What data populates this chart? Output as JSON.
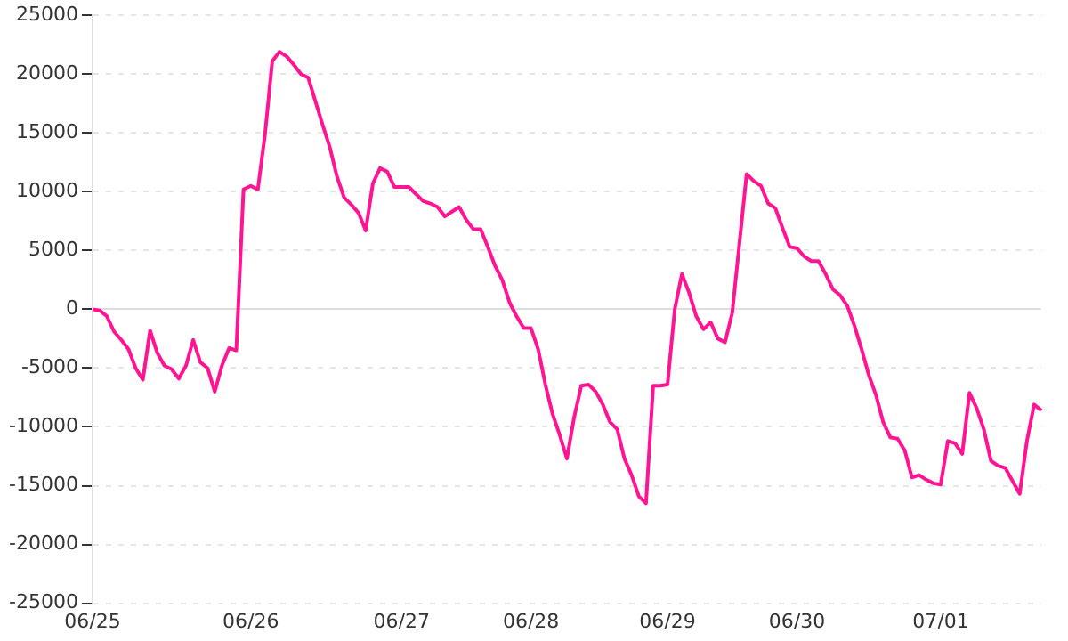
{
  "chart_data": {
    "type": "line",
    "categories": [
      "06/25",
      null,
      null,
      null,
      null,
      null,
      null,
      null,
      null,
      null,
      null,
      null,
      null,
      null,
      null,
      null,
      null,
      null,
      null,
      null,
      null,
      null,
      "06/26",
      null,
      null,
      null,
      null,
      null,
      null,
      null,
      null,
      null,
      null,
      null,
      null,
      null,
      null,
      null,
      null,
      null,
      null,
      null,
      null,
      "06/27",
      null,
      null,
      null,
      null,
      null,
      null,
      null,
      null,
      null,
      null,
      null,
      null,
      null,
      null,
      null,
      null,
      null,
      "06/28",
      null,
      null,
      null,
      null,
      null,
      null,
      null,
      null,
      null,
      null,
      null,
      null,
      null,
      null,
      null,
      null,
      null,
      null,
      "06/29",
      null,
      null,
      null,
      null,
      null,
      null,
      null,
      null,
      null,
      null,
      null,
      null,
      null,
      null,
      null,
      null,
      null,
      "06/30",
      null,
      null,
      null,
      null,
      null,
      null,
      null,
      null,
      null,
      null,
      null,
      null,
      null,
      null,
      null,
      null,
      null,
      null,
      null,
      "07/01",
      null,
      null,
      null,
      null,
      null,
      null,
      null,
      null,
      null,
      null,
      null,
      null,
      null,
      null
    ],
    "series": [
      {
        "color": "#ff1493",
        "values": [
          0,
          -100,
          -600,
          -1900,
          -2600,
          -3400,
          -5000,
          -6000,
          -1800,
          -3700,
          -4800,
          -5100,
          -5900,
          -4800,
          -2600,
          -4500,
          -5000,
          -7000,
          -4800,
          -3300,
          -3500,
          10200,
          10500,
          10200,
          14900,
          21100,
          21900,
          21500,
          20800,
          20000,
          19700,
          17700,
          15700,
          13800,
          11300,
          9500,
          8900,
          8200,
          6700,
          10700,
          12000,
          11700,
          10400,
          10400,
          10400,
          9800,
          9200,
          9000,
          8700,
          7900,
          8300,
          8700,
          7600,
          6800,
          6800,
          5300,
          3700,
          2500,
          600,
          -600,
          -1600,
          -1600,
          -3400,
          -6400,
          -8900,
          -10700,
          -12700,
          -9200,
          -6500,
          -6400,
          -7000,
          -8100,
          -9600,
          -10200,
          -12700,
          -14100,
          -15900,
          -16500,
          -6500,
          -6500,
          -6400,
          0,
          3000,
          1400,
          -600,
          -1700,
          -1100,
          -2500,
          -2800,
          -300,
          5600,
          11500,
          10900,
          10500,
          9000,
          8600,
          6900,
          5300,
          5200,
          4500,
          4100,
          4100,
          3000,
          1700,
          1200,
          300,
          -1400,
          -3400,
          -5600,
          -7300,
          -9600,
          -10900,
          -11000,
          -12000,
          -14300,
          -14100,
          -14500,
          -14800,
          -14900,
          -11200,
          -11400,
          -12300,
          -7100,
          -8400,
          -10200,
          -12900,
          -13300,
          -13500,
          -14600,
          -15700,
          -11200,
          -8100,
          -8600
        ]
      }
    ],
    "ylim": [
      -25000,
      25000
    ],
    "yticks": [
      -25000,
      -20000,
      -15000,
      -10000,
      -5000,
      0,
      5000,
      10000,
      15000,
      20000,
      25000
    ],
    "grid": "y",
    "legend": false,
    "marker": "none",
    "line_style": "solid"
  }
}
